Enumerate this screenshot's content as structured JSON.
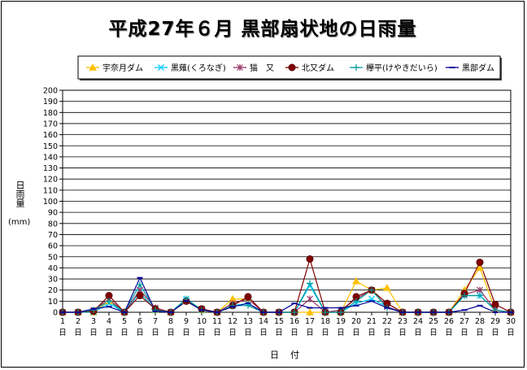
{
  "chart_data": {
    "type": "line",
    "title": "平成27年６月 黒部扇状地の日雨量",
    "ylabel": "日雨量",
    "yunit": "(mm)",
    "xlabel": "日付",
    "ylim": [
      0,
      200
    ],
    "yticks": [
      0,
      10,
      20,
      30,
      40,
      50,
      60,
      70,
      80,
      90,
      100,
      110,
      120,
      130,
      140,
      150,
      160,
      170,
      180,
      190,
      200
    ],
    "x": [
      1,
      2,
      3,
      4,
      5,
      6,
      7,
      8,
      9,
      10,
      11,
      12,
      13,
      14,
      15,
      16,
      17,
      18,
      19,
      20,
      21,
      22,
      23,
      24,
      25,
      26,
      27,
      28,
      29,
      30
    ],
    "x_suffix": "日",
    "grid": true,
    "legend_position": "top",
    "series": [
      {
        "name": "宇奈月ダム",
        "color": "#FFC000",
        "marker": "triangle",
        "values": [
          0,
          0,
          0,
          10,
          0,
          18,
          2,
          0,
          10,
          2,
          0,
          12,
          12,
          0,
          0,
          0,
          0,
          0,
          0,
          28,
          20,
          22,
          0,
          0,
          0,
          0,
          20,
          40,
          2,
          0
        ]
      },
      {
        "name": "黒薙(くろなぎ)",
        "color": "#00CCFF",
        "marker": "x",
        "values": [
          0,
          0,
          0,
          8,
          0,
          18,
          2,
          0,
          12,
          2,
          0,
          6,
          8,
          0,
          0,
          0,
          24,
          0,
          0,
          8,
          12,
          5,
          0,
          0,
          0,
          0,
          15,
          15,
          2,
          0
        ]
      },
      {
        "name": "猫　又",
        "color": "#993366",
        "marker": "star",
        "values": [
          0,
          0,
          2,
          12,
          0,
          20,
          4,
          0,
          10,
          3,
          0,
          8,
          12,
          0,
          0,
          0,
          12,
          0,
          2,
          12,
          20,
          5,
          0,
          0,
          0,
          0,
          16,
          20,
          2,
          0
        ]
      },
      {
        "name": "北又ダム",
        "color": "#800000",
        "marker": "circle",
        "values": [
          0,
          0,
          1,
          15,
          0,
          15,
          3,
          0,
          10,
          3,
          0,
          6,
          14,
          0,
          0,
          0,
          48,
          0,
          0,
          14,
          20,
          8,
          0,
          0,
          0,
          0,
          17,
          45,
          7,
          0
        ]
      },
      {
        "name": "欅平(けやきだいら)",
        "color": "#009999",
        "marker": "plus",
        "values": [
          0,
          0,
          2,
          10,
          0,
          25,
          2,
          0,
          12,
          2,
          0,
          6,
          6,
          0,
          0,
          0,
          26,
          0,
          0,
          10,
          20,
          4,
          0,
          0,
          0,
          0,
          15,
          15,
          2,
          0
        ]
      },
      {
        "name": "黒部ダム",
        "color": "#000099",
        "marker": "dash",
        "values": [
          0,
          0,
          3,
          5,
          0,
          31,
          1,
          0,
          10,
          2,
          0,
          5,
          8,
          0,
          0,
          8,
          4,
          4,
          4,
          6,
          10,
          4,
          0,
          0,
          0,
          0,
          2,
          6,
          0,
          0
        ]
      }
    ]
  }
}
